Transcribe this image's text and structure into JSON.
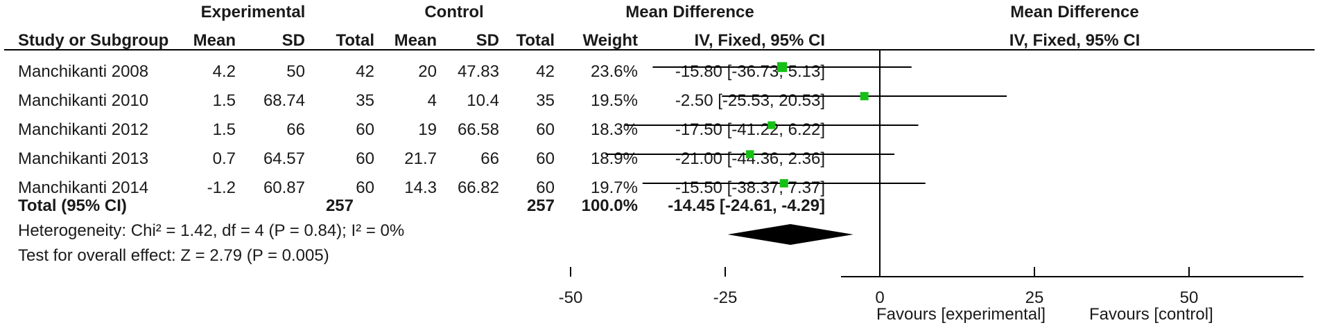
{
  "header": {
    "experimental": "Experimental",
    "control": "Control",
    "mean_difference": "Mean Difference",
    "plot_mean_difference": "Mean Difference",
    "columns": {
      "study": "Study or Subgroup",
      "exp_mean": "Mean",
      "exp_sd": "SD",
      "exp_total": "Total",
      "ctl_mean": "Mean",
      "ctl_sd": "SD",
      "ctl_total": "Total",
      "weight": "Weight",
      "ci": "IV, Fixed, 95% CI",
      "plot_ci": "IV, Fixed, 95% CI"
    }
  },
  "studies": [
    {
      "name": "Manchikanti 2008",
      "exp_mean": "4.2",
      "exp_sd": "50",
      "exp_total": "42",
      "ctl_mean": "20",
      "ctl_sd": "47.83",
      "ctl_total": "42",
      "weight": "23.6%",
      "ci": "-15.80 [-36.73, 5.13]"
    },
    {
      "name": "Manchikanti 2010",
      "exp_mean": "1.5",
      "exp_sd": "68.74",
      "exp_total": "35",
      "ctl_mean": "4",
      "ctl_sd": "10.4",
      "ctl_total": "35",
      "weight": "19.5%",
      "ci": "-2.50 [-25.53, 20.53]"
    },
    {
      "name": "Manchikanti 2012",
      "exp_mean": "1.5",
      "exp_sd": "66",
      "exp_total": "60",
      "ctl_mean": "19",
      "ctl_sd": "66.58",
      "ctl_total": "60",
      "weight": "18.3%",
      "ci": "-17.50 [-41.22, 6.22]"
    },
    {
      "name": "Manchikanti 2013",
      "exp_mean": "0.7",
      "exp_sd": "64.57",
      "exp_total": "60",
      "ctl_mean": "21.7",
      "ctl_sd": "66",
      "ctl_total": "60",
      "weight": "18.9%",
      "ci": "-21.00 [-44.36, 2.36]"
    },
    {
      "name": "Manchikanti 2014",
      "exp_mean": "-1.2",
      "exp_sd": "60.87",
      "exp_total": "60",
      "ctl_mean": "14.3",
      "ctl_sd": "66.82",
      "ctl_total": "60",
      "weight": "19.7%",
      "ci": "-15.50 [-38.37, 7.37]"
    }
  ],
  "total": {
    "label": "Total (95% CI)",
    "exp_total": "257",
    "ctl_total": "257",
    "weight": "100.0%",
    "ci": "-14.45 [-24.61, -4.29]"
  },
  "heterogeneity": "Heterogeneity: Chi² = 1.42, df = 4 (P = 0.84); I² = 0%",
  "overall_effect": "Test for overall effect: Z = 2.79 (P = 0.005)",
  "favours_left": "Favours [experimental]",
  "favours_right": "Favours [control]",
  "chart_data": {
    "type": "scatter",
    "subtype": "forest",
    "xlim": [
      -50,
      50
    ],
    "xticks": [
      -50,
      -25,
      0,
      25,
      50
    ],
    "tick_labels": [
      "-50",
      "-25",
      "0",
      "25",
      "50"
    ],
    "studies": [
      {
        "name": "Manchikanti 2008",
        "estimate": -15.8,
        "lower": -36.73,
        "upper": 5.13,
        "weight": 23.6
      },
      {
        "name": "Manchikanti 2010",
        "estimate": -2.5,
        "lower": -25.53,
        "upper": 20.53,
        "weight": 19.5
      },
      {
        "name": "Manchikanti 2012",
        "estimate": -17.5,
        "lower": -41.22,
        "upper": 6.22,
        "weight": 18.3
      },
      {
        "name": "Manchikanti 2013",
        "estimate": -21.0,
        "lower": -44.36,
        "upper": 2.36,
        "weight": 18.9
      },
      {
        "name": "Manchikanti 2014",
        "estimate": -15.5,
        "lower": -38.37,
        "upper": 7.37,
        "weight": 19.7
      }
    ],
    "pooled": {
      "estimate": -14.45,
      "lower": -24.61,
      "upper": -4.29
    },
    "colors": {
      "marker": "#16c016",
      "line": "#000000",
      "diamond": "#000000"
    }
  }
}
